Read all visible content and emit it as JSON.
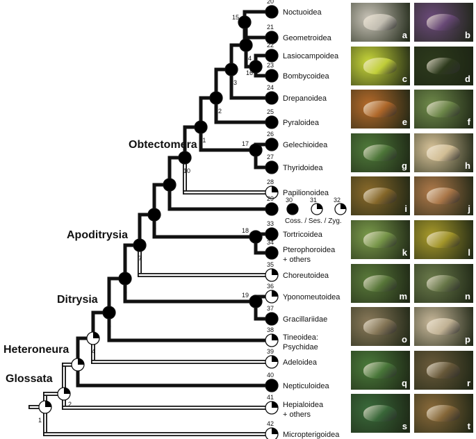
{
  "colors": {
    "branch": "#111111",
    "open_branch": "#ffffff",
    "node_fill": "#000000",
    "node_empty": "#ffffff"
  },
  "clades": [
    {
      "name": "Obtectomera"
    },
    {
      "name": "Apoditrysia"
    },
    {
      "name": "Ditrysia"
    },
    {
      "name": "Heteroneura"
    },
    {
      "name": "Glossata"
    }
  ],
  "taxa": [
    {
      "num": "20",
      "label": "Noctuoidea",
      "state": "coss"
    },
    {
      "num": "21",
      "label": "Geometroidea",
      "state": "coss"
    },
    {
      "num": "22",
      "label": "Lasiocampoidea",
      "state": "coss"
    },
    {
      "num": "23",
      "label": "Bombycoidea",
      "state": "coss"
    },
    {
      "num": "24",
      "label": "Drepanoidea",
      "state": "coss"
    },
    {
      "num": "25",
      "label": "Pyraloidea",
      "state": "coss"
    },
    {
      "num": "26",
      "label": "Gelechioidea",
      "state": "coss"
    },
    {
      "num": "27",
      "label": "Thyridoidea",
      "state": "coss"
    },
    {
      "num": "28",
      "label": "Papilionoidea",
      "state": "zyg"
    },
    {
      "num": "29",
      "label": "",
      "state": "coss"
    },
    {
      "num": "33",
      "label": "Tortricoidea",
      "state": "coss"
    },
    {
      "num": "34",
      "label": "Pterophoroidea",
      "label2": "+ others",
      "state": "coss"
    },
    {
      "num": "35",
      "label": "Choreutoidea",
      "state": "zyg"
    },
    {
      "num": "36",
      "label": "Yponomeutoidea",
      "state": "ses"
    },
    {
      "num": "37",
      "label": "Gracillariidae",
      "state": "coss"
    },
    {
      "num": "38",
      "label": "Tineoidea:",
      "label2": "Psychidae",
      "state": "ses"
    },
    {
      "num": "39",
      "label": "Adeloidea",
      "state": "zyg"
    },
    {
      "num": "40",
      "label": "Nepticuloidea",
      "state": "coss"
    },
    {
      "num": "41",
      "label": "Hepialoidea",
      "label2": "+ others",
      "state": "zyg"
    },
    {
      "num": "42",
      "label": "Micropterigoidea",
      "state": "zyg"
    }
  ],
  "nodes": [
    "1",
    "2",
    "3",
    "4",
    "5",
    "6",
    "7",
    "8",
    "9",
    "10",
    "11",
    "12",
    "13",
    "14",
    "15",
    "16",
    "17",
    "18",
    "19"
  ],
  "legend": {
    "nums": [
      "30",
      "31",
      "32"
    ],
    "text": "Coss. / Ses. / Zyg.",
    "states": [
      "coss",
      "ses",
      "zyg"
    ]
  },
  "photos": [
    {
      "label": "a",
      "color": "#c9c4b8"
    },
    {
      "label": "b",
      "color": "#6b4a7a"
    },
    {
      "label": "c",
      "color": "#c8d63a"
    },
    {
      "label": "d",
      "color": "#2d3a1c"
    },
    {
      "label": "e",
      "color": "#b56a2a"
    },
    {
      "label": "f",
      "color": "#6f8a4a"
    },
    {
      "label": "g",
      "color": "#4f7a3a"
    },
    {
      "label": "h",
      "color": "#d9c49a"
    },
    {
      "label": "i",
      "color": "#8a6a2a"
    },
    {
      "label": "j",
      "color": "#b07a4a"
    },
    {
      "label": "k",
      "color": "#7a9a4a"
    },
    {
      "label": "l",
      "color": "#a89a2a"
    },
    {
      "label": "m",
      "color": "#5a7a3a"
    },
    {
      "label": "n",
      "color": "#6a7a4a"
    },
    {
      "label": "o",
      "color": "#8a7a5a"
    },
    {
      "label": "p",
      "color": "#c8b89a"
    },
    {
      "label": "q",
      "color": "#4a7a3a"
    },
    {
      "label": "r",
      "color": "#6a5a3a"
    },
    {
      "label": "s",
      "color": "#3a6a3a"
    },
    {
      "label": "t",
      "color": "#8a6a3a"
    }
  ]
}
